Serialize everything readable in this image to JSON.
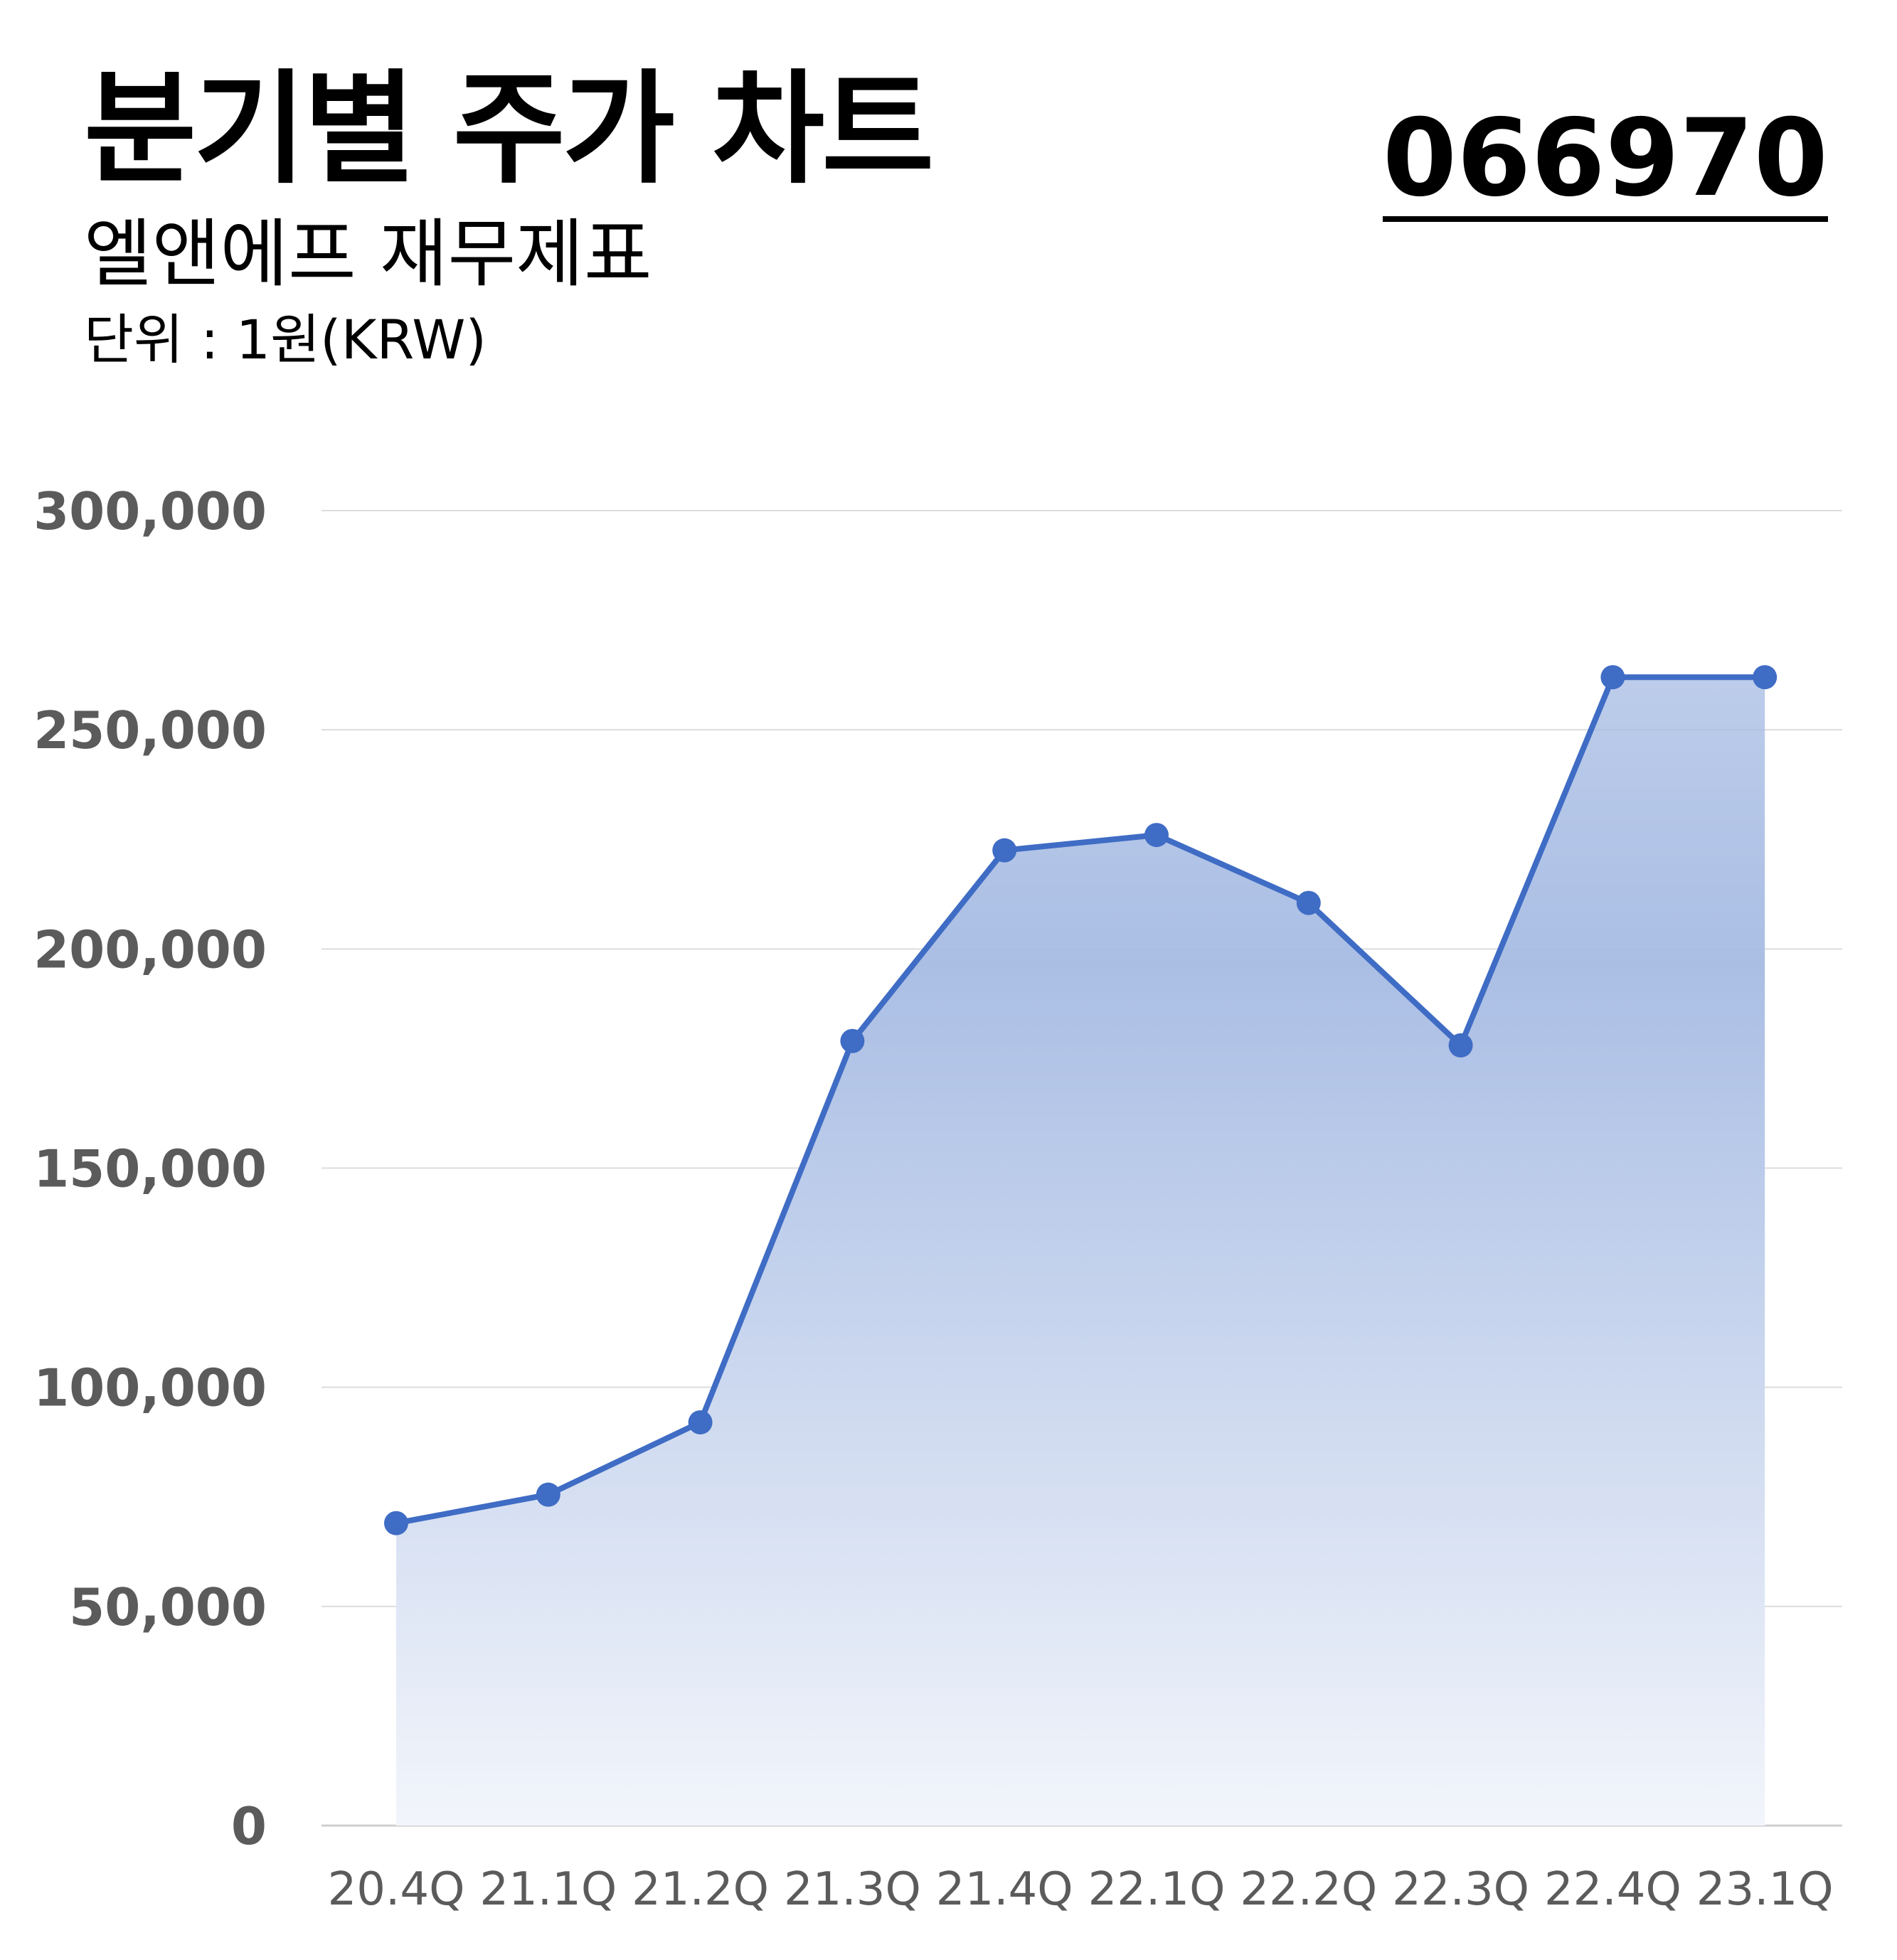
{
  "header": {
    "title": "분기별 주가 차트",
    "subtitle": "엘앤에프 재무제표",
    "unit": "단위 : 1원(KRW)",
    "stock_code": "066970"
  },
  "colors": {
    "line": "#3f6cc4",
    "fill_top": "#a6bbe3",
    "fill_bottom": "#f2f5fb",
    "grid": "#dddddd",
    "tick_text": "#5b5b5b"
  },
  "chart_data": {
    "type": "area",
    "categories": [
      "20.4Q",
      "21.1Q",
      "21.2Q",
      "21.3Q",
      "21.4Q",
      "22.1Q",
      "22.2Q",
      "22.3Q",
      "22.4Q",
      "23.1Q"
    ],
    "series": [
      {
        "values": [
          69000,
          75500,
          92000,
          179000,
          222500,
          226000,
          210500,
          178000,
          262000,
          262000
        ]
      }
    ],
    "ylim": [
      0,
      300000
    ],
    "yticks": [
      0,
      50000,
      100000,
      150000,
      200000,
      250000,
      300000
    ],
    "ytick_labels": [
      "0",
      "50,000",
      "100,000",
      "150,000",
      "200,000",
      "250,000",
      "300,000"
    ],
    "grid": true,
    "markers": true
  }
}
